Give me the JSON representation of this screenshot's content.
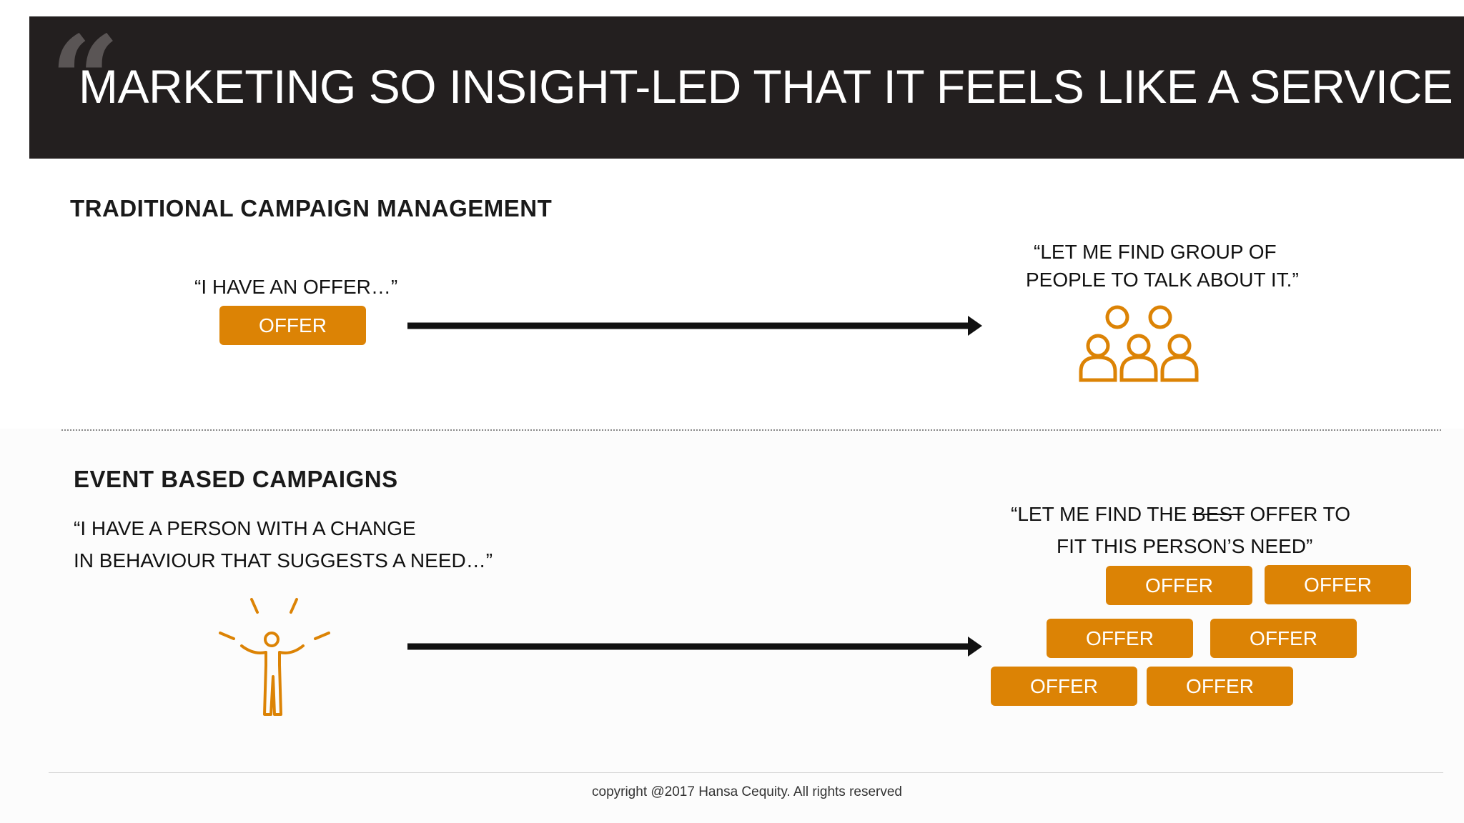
{
  "header": {
    "quote_glyph": "“",
    "title": "MARKETING SO INSIGHT-LED THAT IT FEELS LIKE A SERVICE"
  },
  "traditional": {
    "heading": "TRADITIONAL CAMPAIGN MANAGEMENT",
    "left_quote": "“I HAVE AN OFFER…”",
    "offer_label": "OFFER",
    "right_quote_line1": "“LET ME FIND GROUP OF",
    "right_quote_line2": "PEOPLE TO TALK ABOUT IT.”",
    "icon": "group-of-people-icon"
  },
  "event": {
    "heading": "EVENT BASED CAMPAIGNS",
    "left_quote_line1": "“I HAVE A PERSON WITH A CHANGE",
    "left_quote_line2": "IN BEHAVIOUR THAT SUGGESTS A NEED…”",
    "icon": "excited-person-icon",
    "right_quote_line1_a": "“LET ME FIND THE ",
    "right_quote_line1_strike": "BEST",
    "right_quote_line1_b": " OFFER TO",
    "right_quote_line2": "FIT THIS PERSON’S NEED”",
    "offers": [
      "OFFER",
      "OFFER",
      "OFFER",
      "OFFER",
      "OFFER",
      "OFFER"
    ]
  },
  "footer": {
    "copyright": "copyright @2017 Hansa Cequity. All rights reserved"
  },
  "colors": {
    "accent": "#dc8305",
    "header_bg": "#231f1f",
    "arrow": "#111111"
  }
}
